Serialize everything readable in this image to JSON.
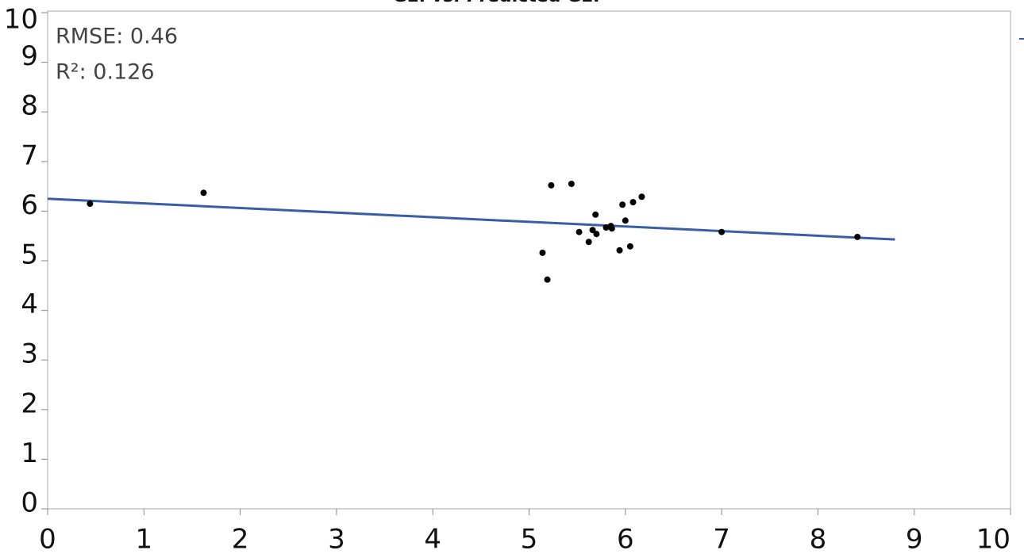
{
  "chart_data": {
    "type": "scatter",
    "title": "GEI vs. Predicted GEI",
    "annotations": [
      "RMSE: 0.46",
      "R²: 0.126"
    ],
    "xlim": [
      0,
      10
    ],
    "ylim": [
      0,
      10
    ],
    "xticks": [
      0,
      1,
      2,
      3,
      4,
      5,
      6,
      7,
      8,
      9,
      10
    ],
    "yticks": [
      0,
      1,
      2,
      3,
      4,
      5,
      6,
      7,
      8,
      9,
      10
    ],
    "series": [
      {
        "color": "#000000",
        "x": [
          0.44,
          1.62,
          5.14,
          5.19,
          5.23,
          5.44,
          5.52,
          5.62,
          5.66,
          5.69,
          5.7,
          5.8,
          5.85,
          5.86,
          5.94,
          5.97,
          6.0,
          6.05,
          6.08,
          6.17,
          7.0,
          8.41
        ],
        "values": [
          6.15,
          6.37,
          5.16,
          4.62,
          6.52,
          6.55,
          5.58,
          5.38,
          5.62,
          5.93,
          5.54,
          5.67,
          5.7,
          5.65,
          5.21,
          6.13,
          5.81,
          5.29,
          6.18,
          6.29,
          5.58,
          5.48
        ]
      },
      {
        "color": "#3a5da8",
        "x": [
          0,
          8.8
        ],
        "values": [
          6.25,
          5.43
        ]
      }
    ]
  }
}
